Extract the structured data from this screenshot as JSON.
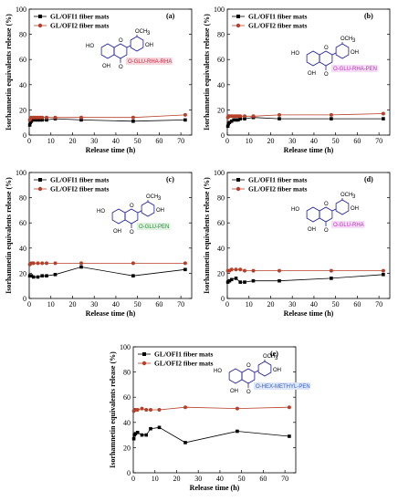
{
  "chart_data": [
    {
      "type": "line",
      "panel_label": "(a)",
      "xlabel": "Release time (h)",
      "ylabel": "Isorhamnetin equivalents release (%)",
      "xlim": [
        0,
        75
      ],
      "ylim": [
        0,
        100
      ],
      "xticks": [
        0,
        10,
        20,
        30,
        40,
        50,
        60,
        70
      ],
      "yticks": [
        0,
        20,
        40,
        60,
        80,
        100
      ],
      "legend_position": "top-left",
      "structure_label": "O-GLU-RHA-RHA",
      "series": [
        {
          "name": "GL/OFI1 fiber mats",
          "color": "#000000",
          "x": [
            0.25,
            0.5,
            1,
            2,
            3,
            4,
            5,
            6,
            8,
            12,
            24,
            48,
            72
          ],
          "y": [
            8,
            10,
            11,
            12,
            12,
            12,
            12,
            12,
            12,
            13,
            12,
            11,
            12
          ]
        },
        {
          "name": "GL/OFI2 fiber mats",
          "color": "#b5412b",
          "x": [
            0.25,
            0.5,
            1,
            2,
            3,
            4,
            5,
            6,
            8,
            12,
            24,
            48,
            72
          ],
          "y": [
            12,
            13,
            14,
            14,
            14,
            14,
            14,
            14,
            14,
            14,
            14,
            14,
            16
          ]
        }
      ]
    },
    {
      "type": "line",
      "panel_label": "(b)",
      "xlabel": "Release time (h)",
      "ylabel": "Isorhamnetin equivalents release (%)",
      "xlim": [
        0,
        75
      ],
      "ylim": [
        0,
        100
      ],
      "xticks": [
        0,
        10,
        20,
        30,
        40,
        50,
        60,
        70
      ],
      "yticks": [
        0,
        20,
        40,
        60,
        80,
        100
      ],
      "legend_position": "top-left",
      "structure_label": "O-GLU-RHA-PEN",
      "series": [
        {
          "name": "GL/OFI1 fiber mats",
          "color": "#000000",
          "x": [
            0.25,
            0.5,
            1,
            2,
            3,
            4,
            5,
            6,
            8,
            12,
            24,
            48,
            72
          ],
          "y": [
            7,
            9,
            10,
            11,
            12,
            12,
            12,
            13,
            13,
            14,
            13,
            13,
            13
          ]
        },
        {
          "name": "GL/OFI2 fiber mats",
          "color": "#b5412b",
          "x": [
            0.25,
            0.5,
            1,
            2,
            3,
            4,
            5,
            6,
            8,
            12,
            24,
            48,
            72
          ],
          "y": [
            14,
            15,
            15,
            15,
            15,
            15,
            15,
            15,
            15,
            15,
            16,
            16,
            17
          ]
        }
      ]
    },
    {
      "type": "line",
      "panel_label": "(c)",
      "xlabel": "Release time (h)",
      "ylabel": "Isorhamnetin equivalents release (%)",
      "xlim": [
        0,
        75
      ],
      "ylim": [
        0,
        100
      ],
      "xticks": [
        0,
        10,
        20,
        30,
        40,
        50,
        60,
        70
      ],
      "yticks": [
        0,
        20,
        40,
        60,
        80,
        100
      ],
      "legend_position": "top-left",
      "structure_label": "O-GLU-PEN",
      "series": [
        {
          "name": "GL/OFI1 fiber mats",
          "color": "#000000",
          "x": [
            0.25,
            1,
            2,
            4,
            6,
            8,
            12,
            24,
            48,
            72
          ],
          "y": [
            18,
            18,
            17,
            17,
            18,
            18,
            19,
            25,
            18,
            23
          ]
        },
        {
          "name": "GL/OFI2 fiber mats",
          "color": "#b5412b",
          "x": [
            0.25,
            1,
            2,
            4,
            6,
            8,
            12,
            24,
            48,
            72
          ],
          "y": [
            27,
            28,
            28,
            28,
            28,
            28,
            28,
            28,
            28,
            28
          ]
        }
      ]
    },
    {
      "type": "line",
      "panel_label": "(d)",
      "xlabel": "Release time (h)",
      "ylabel": "Isorhamnetin equivalents release (%)",
      "xlim": [
        0,
        75
      ],
      "ylim": [
        0,
        100
      ],
      "xticks": [
        0,
        10,
        20,
        30,
        40,
        50,
        60,
        70
      ],
      "yticks": [
        0,
        20,
        40,
        60,
        80,
        100
      ],
      "legend_position": "top-left",
      "structure_label": "O-GLU-RHA",
      "series": [
        {
          "name": "GL/OFI1 fiber mats",
          "color": "#000000",
          "x": [
            0.25,
            1,
            2,
            4,
            6,
            8,
            12,
            24,
            48,
            72
          ],
          "y": [
            13,
            14,
            15,
            16,
            13,
            13,
            14,
            14,
            16,
            19
          ]
        },
        {
          "name": "GL/OFI2 fiber mats",
          "color": "#b5412b",
          "x": [
            0.25,
            1,
            2,
            4,
            6,
            8,
            12,
            24,
            48,
            72
          ],
          "y": [
            22,
            22,
            23,
            23,
            23,
            22,
            22,
            22,
            22,
            22
          ]
        }
      ]
    },
    {
      "type": "line",
      "panel_label": "(e)",
      "xlabel": "Release time (h)",
      "ylabel": "Isorhamnetin equivalents release (%)",
      "xlim": [
        0,
        75
      ],
      "ylim": [
        0,
        100
      ],
      "xticks": [
        0,
        10,
        20,
        30,
        40,
        50,
        60,
        70
      ],
      "yticks": [
        0,
        20,
        40,
        60,
        80,
        100
      ],
      "legend_position": "top-left",
      "structure_label": "O-HEX-METHYL-PEN",
      "series": [
        {
          "name": "GL/OFI1 fiber mats",
          "color": "#000000",
          "x": [
            0.25,
            0.5,
            1,
            2,
            4,
            6,
            8,
            12,
            24,
            48,
            72
          ],
          "y": [
            27,
            30,
            31,
            32,
            30,
            30,
            35,
            36,
            24,
            33,
            29
          ]
        },
        {
          "name": "GL/OFI2 fiber mats",
          "color": "#b5412b",
          "x": [
            0.25,
            0.5,
            1,
            2,
            4,
            6,
            8,
            12,
            24,
            48,
            72
          ],
          "y": [
            49,
            50,
            50,
            50,
            51,
            50,
            50,
            50,
            52,
            51,
            52
          ]
        }
      ]
    }
  ],
  "structure": {
    "ho_left": "HO",
    "oh_bottom": "OH",
    "o_ring": "O",
    "o_carbonyl": "O",
    "oh_right": "OH",
    "och3": "OCH3",
    "och3_top": "OCH",
    "och3_sub": "3"
  }
}
